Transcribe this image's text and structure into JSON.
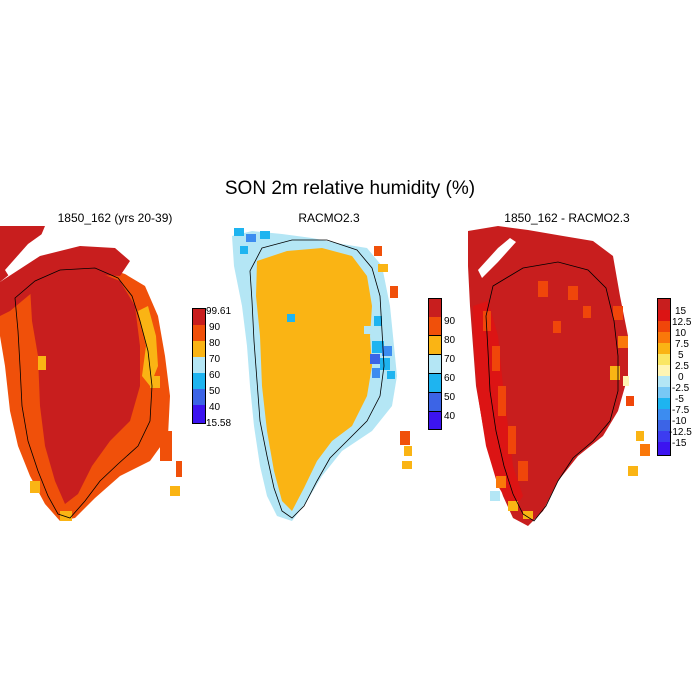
{
  "title": "SON 2m relative humidity (%)",
  "panels": [
    {
      "title": "1850_162 (yrs 20-39)",
      "colorbar": {
        "colors": [
          "#c81e1e",
          "#f0500a",
          "#fab414",
          "#b4e6f5",
          "#1eb4f0",
          "#3c64e6",
          "#3c14f0"
        ],
        "labels": [
          "99.61",
          "90",
          "80",
          "70",
          "60",
          "50",
          "40",
          "15.58"
        ]
      }
    },
    {
      "title": "RACMO2.3",
      "colorbar": {
        "colors": [
          "#c81e1e",
          "#f0500a",
          "#fab414",
          "#b4e6f5",
          "#1eb4f0",
          "#3c64e6",
          "#3c14f0"
        ],
        "labels": [
          "90",
          "80",
          "70",
          "60",
          "50",
          "40"
        ]
      }
    },
    {
      "title": "1850_162 - RACMO2.3",
      "colorbar": {
        "colors": [
          "#c81e1e",
          "#dc1414",
          "#f0460a",
          "#fa780a",
          "#fab414",
          "#fae664",
          "#fff5b4",
          "#b4e6f5",
          "#78c8f5",
          "#1eb4f0",
          "#3c8cf0",
          "#3c64e6",
          "#3c3cf0",
          "#3c14f0"
        ],
        "labels": [
          "15",
          "12.5",
          "10",
          "7.5",
          "5",
          "2.5",
          "0",
          "-2.5",
          "-5",
          "-7.5",
          "-10",
          "-12.5",
          "-15"
        ]
      }
    }
  ]
}
